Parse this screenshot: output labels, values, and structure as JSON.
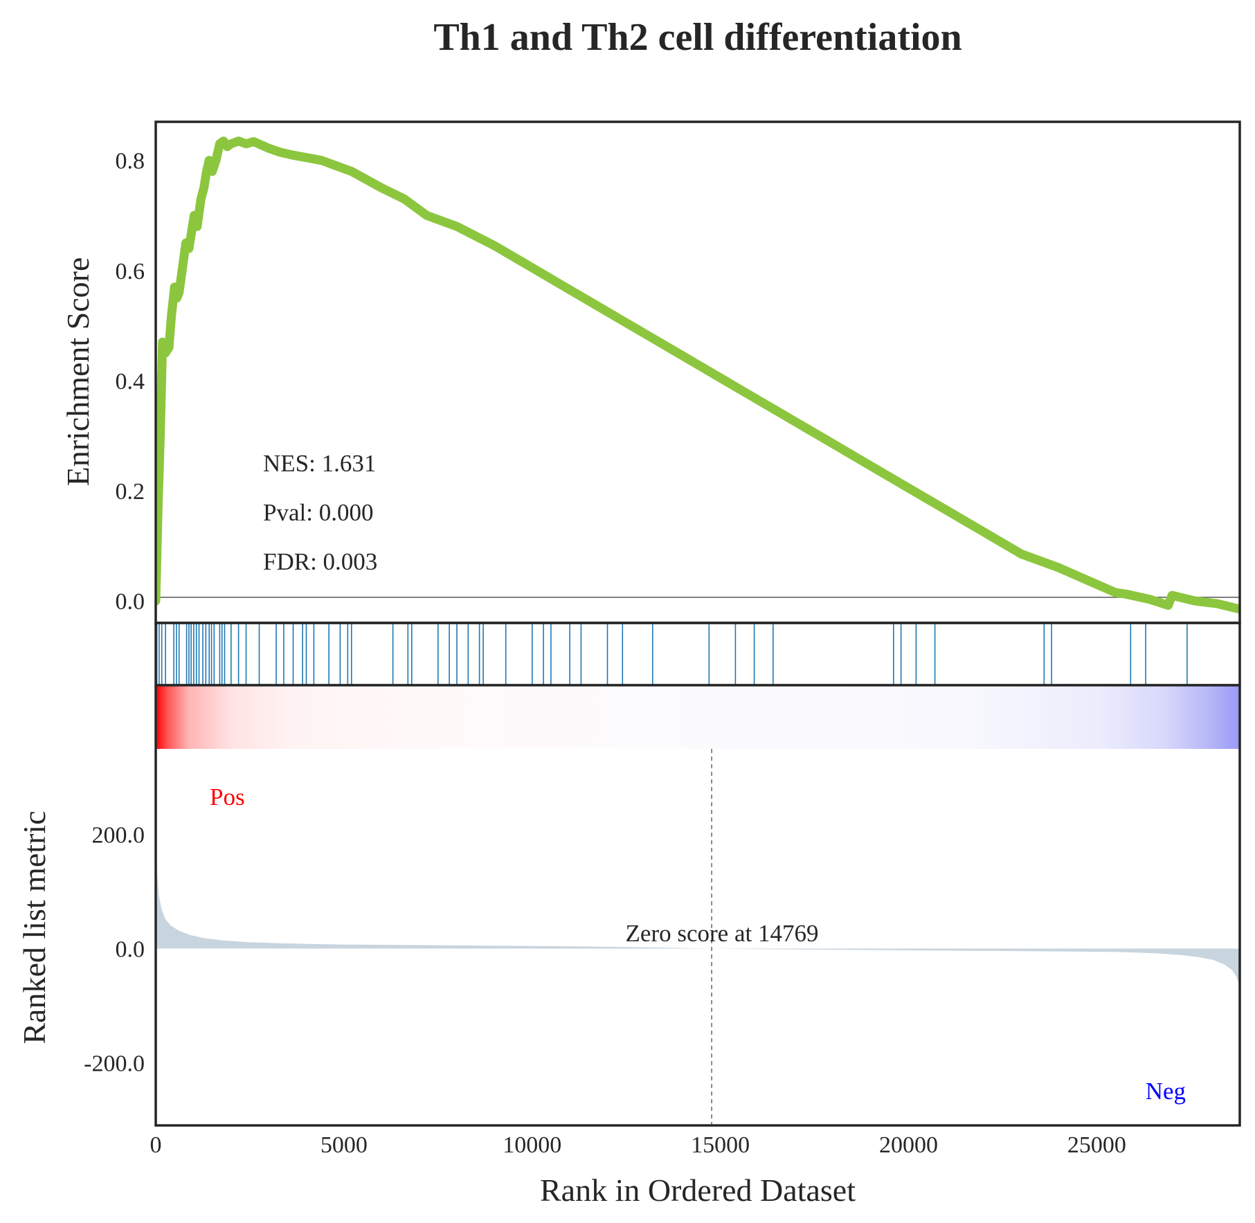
{
  "chart_data": {
    "type": "line",
    "title": "Th1 and Th2 cell differentiation",
    "xlabel": "Rank in Ordered Dataset",
    "xlim": [
      0,
      28800
    ],
    "x_ticks": [
      0,
      5000,
      10000,
      15000,
      20000,
      25000
    ],
    "x_tick_labels": [
      "0",
      "5000",
      "10000",
      "15000",
      "20000",
      "25000"
    ],
    "colors": {
      "es_line": "#8cc63e",
      "hit_lines": "#1f77b4",
      "pos_label": "#ff0000",
      "neg_label": "#0000ff",
      "metric_fill": "#c8d4de",
      "frame": "#262626"
    },
    "enrichment": {
      "ylabel": "Enrichment Score",
      "ylim": [
        -0.04,
        0.87
      ],
      "y_ticks": [
        0.0,
        0.2,
        0.4,
        0.6,
        0.8
      ],
      "y_tick_labels": [
        "0.0",
        "0.2",
        "0.4",
        "0.6",
        "0.8"
      ],
      "series": [
        {
          "x": [
            0,
            60,
            120,
            180,
            250,
            350,
            420,
            500,
            560,
            620,
            700,
            800,
            880,
            950,
            1020,
            1100,
            1200,
            1280,
            1350,
            1420,
            1500,
            1600,
            1700,
            1800,
            1900,
            2000,
            2200,
            2400,
            2600,
            2800,
            3000,
            3300,
            3600,
            4000,
            4400,
            4800,
            5200,
            5600,
            6000,
            6600,
            7200,
            8000,
            9000,
            10000,
            11000,
            12000,
            13000,
            14000,
            15000,
            16000,
            17000,
            18000,
            19000,
            20000,
            21000,
            22000,
            23000,
            23400,
            24000,
            25000,
            25500,
            25800,
            26400,
            26900,
            27000,
            27600,
            28200,
            28800
          ],
          "y": [
            0.0,
            0.17,
            0.3,
            0.47,
            0.45,
            0.46,
            0.52,
            0.57,
            0.55,
            0.56,
            0.6,
            0.65,
            0.64,
            0.67,
            0.7,
            0.68,
            0.73,
            0.75,
            0.78,
            0.8,
            0.78,
            0.8,
            0.83,
            0.835,
            0.825,
            0.83,
            0.835,
            0.83,
            0.834,
            0.828,
            0.822,
            0.815,
            0.81,
            0.805,
            0.8,
            0.79,
            0.78,
            0.765,
            0.75,
            0.73,
            0.7,
            0.68,
            0.645,
            0.605,
            0.565,
            0.525,
            0.485,
            0.445,
            0.405,
            0.365,
            0.325,
            0.285,
            0.245,
            0.205,
            0.165,
            0.125,
            0.085,
            0.075,
            0.06,
            0.03,
            0.015,
            0.012,
            0.003,
            -0.008,
            0.01,
            0.0,
            -0.005,
            -0.015
          ]
        }
      ],
      "annotations": [
        "NES: 1.631",
        "Pval: 0.000",
        "FDR: 0.003"
      ]
    },
    "hits": [
      30,
      90,
      160,
      260,
      480,
      550,
      620,
      820,
      880,
      940,
      1010,
      1080,
      1150,
      1250,
      1330,
      1420,
      1480,
      1550,
      1700,
      1760,
      1830,
      2000,
      2200,
      2400,
      2750,
      3200,
      3400,
      3650,
      3900,
      4000,
      4200,
      4600,
      4900,
      5100,
      5200,
      6300,
      6700,
      6800,
      7500,
      7800,
      8000,
      8300,
      8600,
      8700,
      9300,
      10000,
      10300,
      10500,
      11000,
      11300,
      12000,
      12400,
      13200,
      14700,
      15400,
      15900,
      16400,
      19600,
      19800,
      20200,
      20700,
      23600,
      23800,
      25900,
      26300,
      27400
    ],
    "metric": {
      "ylabel": "Ranked list metric",
      "ylim": [
        -310,
        350
      ],
      "y_ticks": [
        200.0,
        0.0,
        -200.0
      ],
      "y_tick_labels": [
        "200.0",
        "0.0",
        "-200.0"
      ],
      "x": [
        0,
        15,
        40,
        80,
        150,
        250,
        400,
        600,
        900,
        1300,
        1800,
        2500,
        3500,
        5000,
        7000,
        9000,
        11000,
        13000,
        14769,
        16000,
        18000,
        20000,
        22000,
        24000,
        25500,
        26500,
        27200,
        27700,
        28100,
        28400,
        28600,
        28700,
        28800
      ],
      "values": [
        225,
        175,
        130,
        95,
        70,
        52,
        40,
        32,
        24,
        18,
        14,
        11,
        9,
        7,
        6,
        5,
        4,
        2,
        0,
        -1,
        -2,
        -3,
        -4,
        -5,
        -6,
        -8,
        -11,
        -15,
        -20,
        -28,
        -38,
        -48,
        -65
      ],
      "zero_label": "Zero score at 14769",
      "zero_x": 14769,
      "pos_label": "Pos",
      "neg_label": "Neg"
    }
  }
}
